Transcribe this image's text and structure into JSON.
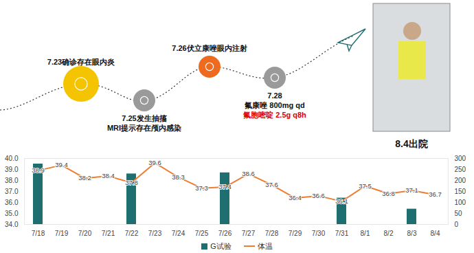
{
  "chart_data": {
    "type": "bar_line",
    "categories": [
      "7/18",
      "7/19",
      "7/20",
      "7/21",
      "7/22",
      "7/23",
      "7/24",
      "7/25",
      "7/26",
      "7/27",
      "7/28",
      "7/29",
      "7/30",
      "7/31",
      "8/1",
      "8/2",
      "8/3",
      "8/4"
    ],
    "series": [
      {
        "name": "G试验",
        "type": "bar",
        "color": "#1f6e70",
        "axis": "y2",
        "values": [
          275,
          null,
          null,
          null,
          230,
          null,
          null,
          null,
          235,
          null,
          null,
          null,
          null,
          120,
          null,
          null,
          70,
          null
        ]
      },
      {
        "name": "体温",
        "type": "line",
        "color": "#ed7d31",
        "data_labels": true,
        "values": [
          38.9,
          39.4,
          38.2,
          38.4,
          37.8,
          39.6,
          38.3,
          37.3,
          37.4,
          38.6,
          37.6,
          36.4,
          36.6,
          36.1,
          37.5,
          36.8,
          37.1,
          36.7
        ]
      }
    ],
    "ylim": [
      34,
      40
    ],
    "yticks": [
      34,
      35,
      36,
      37,
      38,
      39,
      40
    ],
    "y2lim": [
      0,
      300
    ],
    "y2ticks": [
      0,
      50,
      100,
      150,
      200,
      250,
      300
    ],
    "grid": false,
    "legend": "bottom",
    "annotations": [
      {
        "lines": [
          {
            "text": "7.23确诊存在眼内炎"
          }
        ]
      },
      {
        "lines": [
          {
            "text": "7.25发生抽搐"
          },
          {
            "text": "MRI提示存在颅内感染"
          }
        ]
      },
      {
        "lines": [
          {
            "text": "7.26伏立康唑眼内注射"
          }
        ]
      },
      {
        "lines": [
          {
            "text": "7.28"
          },
          {
            "text": "氟康唑 800mg qd"
          },
          {
            "text": "氟胞嘧啶 2.5g q8h",
            "color": "#e00000"
          }
        ]
      },
      {
        "lines": [
          {
            "text": "8.4出院"
          }
        ]
      }
    ]
  }
}
